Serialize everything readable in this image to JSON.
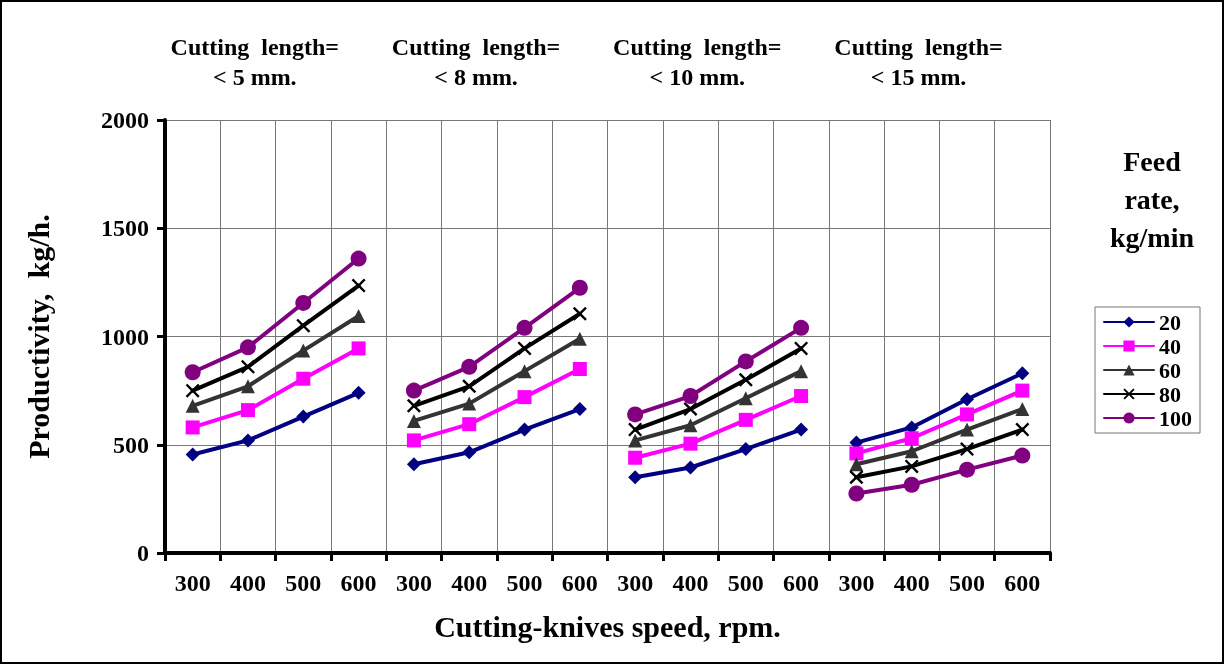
{
  "chart_data": {
    "type": "line",
    "xlabel": "Cutting-knives speed, rpm.",
    "ylabel": "Productivity,  kg/h.",
    "legend_title": "Feed\nrate,\nkg/min",
    "annotations": [
      "Cutting  length=\n< 5 mm.",
      "Cutting  length=\n< 8 mm.",
      "Cutting  length=\n< 10 mm.",
      "Cutting  length=\n< 15 mm."
    ],
    "categories": [
      "300",
      "400",
      "500",
      "600",
      "300",
      "400",
      "500",
      "600",
      "300",
      "400",
      "500",
      "600",
      "300",
      "400",
      "500",
      "600"
    ],
    "series": [
      {
        "name": "20",
        "color": "#000080",
        "marker": "diamond",
        "values": [
          455,
          520,
          630,
          740,
          410,
          465,
          570,
          665,
          350,
          395,
          480,
          570,
          510,
          580,
          710,
          830
        ]
      },
      {
        "name": "40",
        "color": "#ff00ff",
        "marker": "square",
        "values": [
          580,
          660,
          805,
          945,
          520,
          595,
          720,
          850,
          440,
          505,
          615,
          725,
          460,
          530,
          640,
          750
        ]
      },
      {
        "name": "60",
        "color": "#333333",
        "marker": "triangle",
        "values": [
          680,
          770,
          935,
          1095,
          610,
          690,
          840,
          990,
          520,
          590,
          715,
          840,
          410,
          470,
          570,
          665
        ]
      },
      {
        "name": "80",
        "color": "#000000",
        "marker": "cross",
        "values": [
          750,
          860,
          1050,
          1235,
          680,
          770,
          945,
          1105,
          570,
          665,
          800,
          945,
          350,
          400,
          480,
          570
        ]
      },
      {
        "name": "100",
        "color": "#800080",
        "marker": "circle",
        "values": [
          835,
          950,
          1155,
          1360,
          750,
          860,
          1040,
          1225,
          640,
          725,
          885,
          1040,
          275,
          315,
          385,
          450
        ]
      }
    ],
    "ylim": [
      0,
      2000
    ],
    "yticks": [
      0,
      500,
      1000,
      1500,
      2000
    ],
    "grid": true,
    "legend": "right",
    "line_style": "solid"
  }
}
